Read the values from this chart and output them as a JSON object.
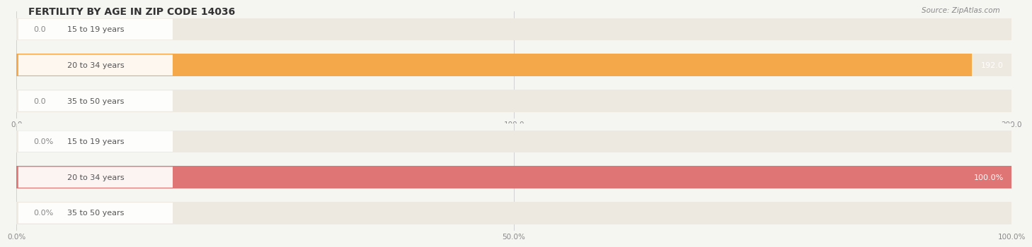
{
  "title": "FERTILITY BY AGE IN ZIP CODE 14036",
  "source": "Source: ZipAtlas.com",
  "top_chart": {
    "categories": [
      "15 to 19 years",
      "20 to 34 years",
      "35 to 50 years"
    ],
    "values": [
      0.0,
      192.0,
      0.0
    ],
    "xlim": [
      0,
      200
    ],
    "xticks": [
      0.0,
      100.0,
      200.0
    ],
    "xtick_labels": [
      "0.0",
      "100.0",
      "200.0"
    ],
    "bar_color": "#F5A84A",
    "bar_bg_color": "#EDE8E0"
  },
  "bottom_chart": {
    "categories": [
      "15 to 19 years",
      "20 to 34 years",
      "35 to 50 years"
    ],
    "values": [
      0.0,
      100.0,
      0.0
    ],
    "xlim": [
      0,
      100
    ],
    "xticks": [
      0.0,
      50.0,
      100.0
    ],
    "xtick_labels": [
      "0.0%",
      "50.0%",
      "100.0%"
    ],
    "bar_color": "#E07575",
    "bar_bg_color": "#EDE8E0"
  },
  "category_label_color": "#555555",
  "bg_color": "#f5f5f2",
  "title_fontsize": 10,
  "source_fontsize": 7.5,
  "value_label_fontsize": 8,
  "category_fontsize": 8,
  "tick_fontsize": 7.5
}
